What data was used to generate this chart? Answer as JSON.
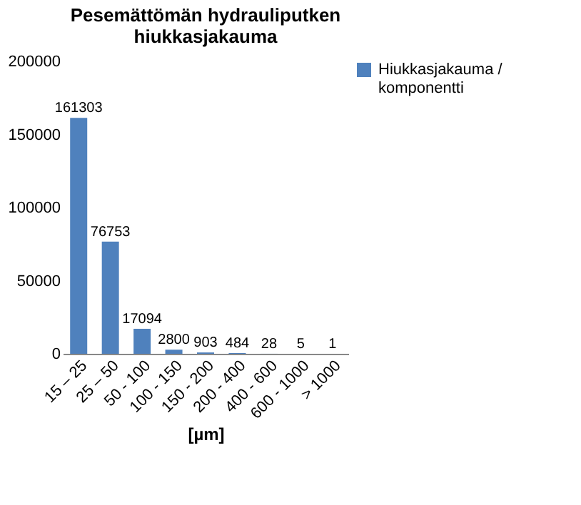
{
  "chart_data": {
    "type": "bar",
    "title": [
      "Pesemättömän hydrauliputken",
      "hiukkasjakauma"
    ],
    "xlabel": "[µm]",
    "categories": [
      "15 – 25",
      "25 – 50",
      "50 - 100",
      "100 - 150",
      "150 - 200",
      "200 - 400",
      "400 - 600",
      "600 - 1000",
      "> 1000"
    ],
    "series": [
      {
        "name": "Hiukkasjakauma / komponentti",
        "color": "#4f81bd",
        "values": [
          161303,
          76753,
          17094,
          2800,
          903,
          484,
          28,
          5,
          1
        ]
      }
    ],
    "ylim": [
      0,
      200000
    ],
    "yticks": [
      0,
      50000,
      100000,
      150000,
      200000
    ],
    "grid": false,
    "legend": "right",
    "data_labels": true
  }
}
